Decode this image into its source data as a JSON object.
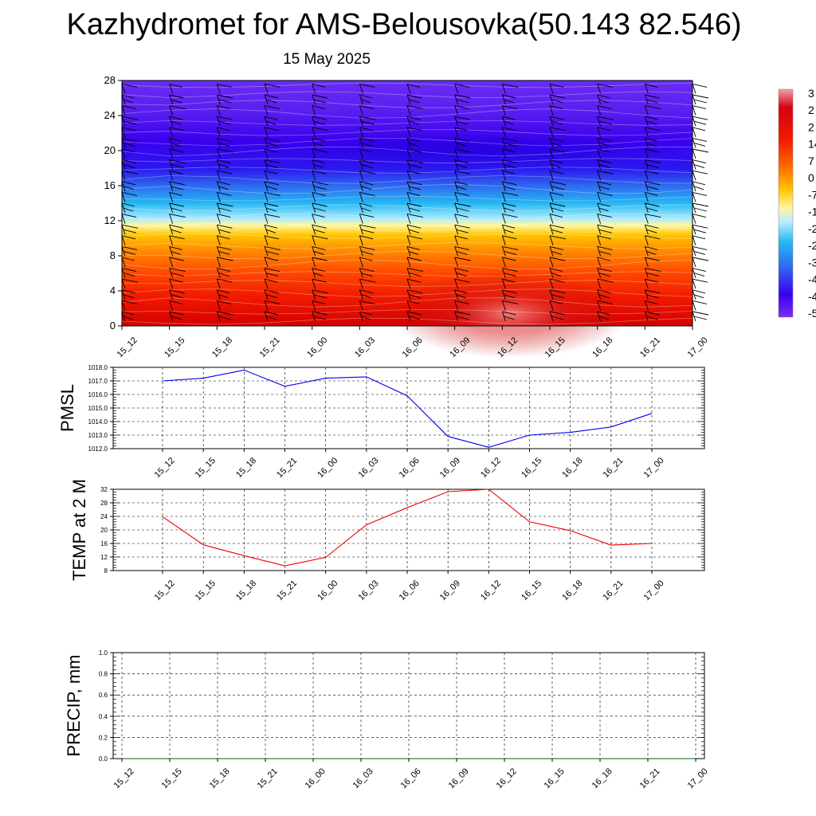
{
  "title": "Kazhydromet for AMS-Belousovka(50.143 82.546)",
  "subtitle": "15 May 2025",
  "colors": {
    "pmsl_line": "#0000ee",
    "temp_line": "#ee0000",
    "precip_line": "#006400"
  },
  "chart_data": [
    {
      "type": "heatmap",
      "name": "Temperature–height cross-section with wind barbs",
      "x": [
        "15_12",
        "15_15",
        "15_18",
        "15_21",
        "16_00",
        "16_03",
        "16_06",
        "16_09",
        "16_12",
        "16_15",
        "16_18",
        "16_21",
        "17_00"
      ],
      "y_ticks": [
        "0",
        "4",
        "8",
        "12",
        "16",
        "20",
        "24",
        "28"
      ],
      "ylim": [
        0,
        28
      ],
      "colorbar_labels": [
        "3",
        "2",
        "2",
        "14",
        "7",
        "0",
        "-7",
        "-1",
        "-2",
        "-2",
        "-3",
        "-4",
        "-4",
        "-5"
      ],
      "grid": false
    },
    {
      "type": "line",
      "ylabel": "PMSL",
      "x": [
        "15_12",
        "15_15",
        "15_18",
        "15_21",
        "16_00",
        "16_03",
        "16_06",
        "16_09",
        "16_12",
        "16_15",
        "16_18",
        "16_21",
        "17_00"
      ],
      "values": [
        1017.0,
        1017.2,
        1017.8,
        1016.6,
        1017.2,
        1017.3,
        1015.9,
        1012.9,
        1012.1,
        1013.0,
        1013.2,
        1013.6,
        1014.6
      ],
      "ylim": [
        1012,
        1018
      ],
      "y_ticks": [
        "1012.0",
        "1013.0",
        "1014.0",
        "1015.0",
        "1016.0",
        "1017.0",
        "1018.0"
      ],
      "grid": true
    },
    {
      "type": "line",
      "ylabel": "TEMP at 2 M",
      "x": [
        "15_12",
        "15_15",
        "15_18",
        "15_21",
        "16_00",
        "16_03",
        "16_06",
        "16_09",
        "16_12",
        "16_15",
        "16_18",
        "16_21",
        "17_00"
      ],
      "values": [
        23.9,
        15.6,
        12.4,
        9.4,
        11.9,
        21.5,
        26.6,
        31.3,
        32.0,
        22.4,
        19.8,
        15.5,
        16.0
      ],
      "ylim": [
        8,
        32
      ],
      "y_ticks": [
        "8",
        "12",
        "16",
        "20",
        "24",
        "28",
        "32"
      ],
      "grid": true
    },
    {
      "type": "line",
      "ylabel": "PRECIP, mm",
      "x": [
        "15_12",
        "15_15",
        "15_18",
        "15_21",
        "16_00",
        "16_03",
        "16_06",
        "16_09",
        "16_12",
        "16_15",
        "16_18",
        "16_21",
        "17_00"
      ],
      "values": [
        0,
        0,
        0,
        0,
        0,
        0,
        0,
        0,
        0,
        0,
        0,
        0,
        0
      ],
      "ylim": [
        0,
        1
      ],
      "y_ticks": [
        "0.0",
        "0.2",
        "0.4",
        "0.6",
        "0.8",
        "1.0"
      ],
      "grid": true
    }
  ]
}
